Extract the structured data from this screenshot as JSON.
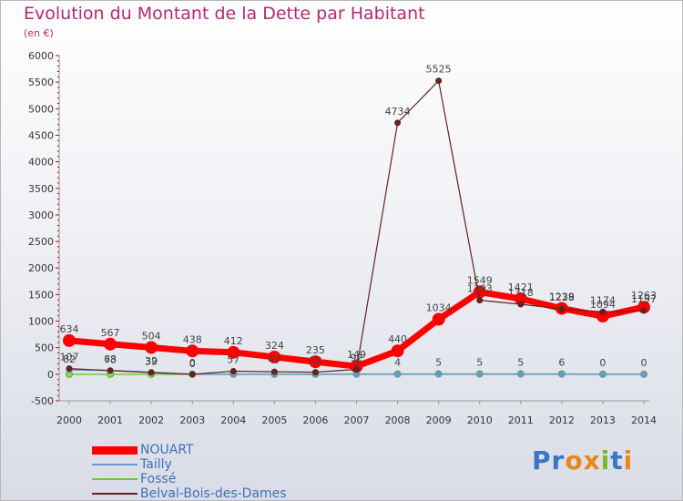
{
  "header": {
    "title": "Evolution du Montant de la Dette par Habitant",
    "subtitle": "(en €)"
  },
  "logo": {
    "letters": [
      "P",
      "r",
      "o",
      "x",
      "i",
      "t",
      "i"
    ],
    "colors": [
      "#3a76c5",
      "#3a76c5",
      "#e8871a",
      "#e8871a",
      "#7bb62b",
      "#3a76c5",
      "#e8871a"
    ]
  },
  "chart_data": {
    "type": "line",
    "title": "Evolution du Montant de la Dette par Habitant",
    "ylabel": "(en €)",
    "xlabel": "",
    "x": [
      "2000",
      "2001",
      "2002",
      "2003",
      "2004",
      "2005",
      "2006",
      "2007",
      "2008",
      "2009",
      "2010",
      "2011",
      "2012",
      "2013",
      "2014"
    ],
    "ylim": [
      -500,
      6000
    ],
    "yticks": [
      -500,
      0,
      500,
      1000,
      1500,
      2000,
      2500,
      3000,
      3500,
      4000,
      4500,
      5000,
      5500,
      6000
    ],
    "grid": false,
    "legend_position": "bottom-left",
    "series": [
      {
        "name": "NOUART",
        "color": "#ff0000",
        "values": [
          634,
          567,
          504,
          438,
          412,
          324,
          235,
          149,
          440,
          1034,
          1549,
          1421,
          1239,
          1094,
          1263
        ],
        "labels": [
          "634",
          "567",
          "504",
          "438",
          "412",
          "324",
          "235",
          "149",
          "440",
          "1034",
          "1549",
          "1421",
          "1239",
          "1094",
          "1263"
        ]
      },
      {
        "name": "Tailly",
        "color": "#6699cc",
        "values": [
          82,
          73,
          39,
          0,
          0,
          0,
          0,
          0,
          0,
          0,
          0,
          0,
          0,
          0,
          0
        ],
        "labels": [
          "82",
          "73",
          "39",
          "0",
          "",
          "",
          "",
          "",
          "",
          "",
          "",
          "",
          "",
          "",
          ""
        ]
      },
      {
        "name": "Fossé",
        "color": "#66cc33",
        "values": [
          0,
          0,
          0,
          0,
          0,
          0,
          0,
          4,
          4,
          5,
          5,
          5,
          6,
          0,
          0
        ],
        "labels": [
          "",
          "",
          "",
          "",
          "",
          "",
          "",
          "4",
          "4",
          "5",
          "5",
          "5",
          "6",
          "0",
          "0"
        ]
      },
      {
        "name": "Belval-Bois-des-Dames",
        "color": "#662222",
        "values": [
          107,
          68,
          32,
          0,
          57,
          47,
          38,
          92,
          4734,
          5525,
          1393,
          1318,
          1228,
          1174,
          1197
        ],
        "labels": [
          "107",
          "68",
          "32",
          "0",
          "57",
          "47",
          "38",
          "92",
          "4734",
          "5525",
          "1393",
          "1318",
          "1228",
          "1174",
          "1197"
        ]
      }
    ]
  }
}
